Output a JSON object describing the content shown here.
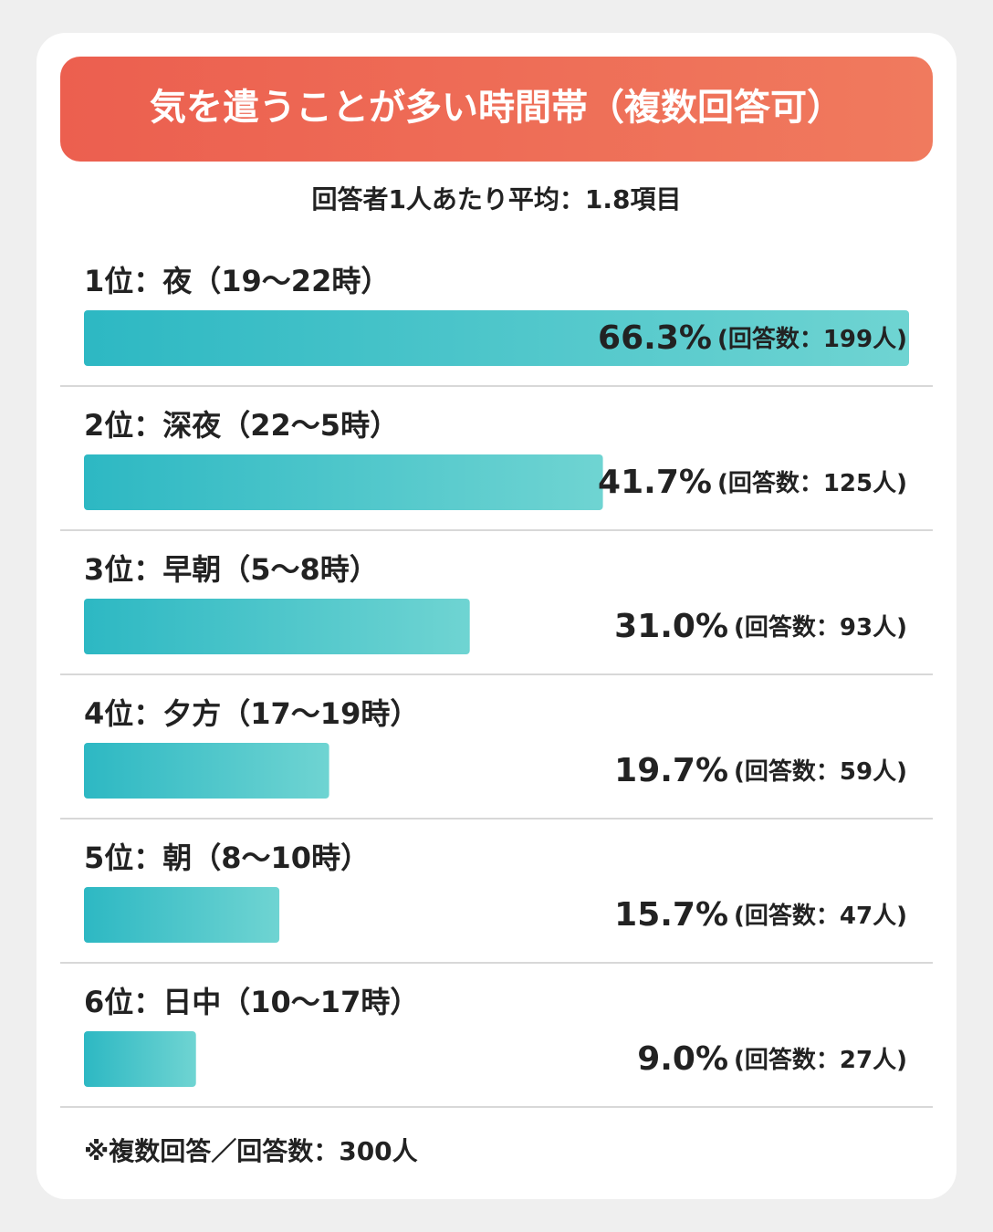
{
  "chart_data": {
    "type": "bar",
    "orientation": "horizontal",
    "title": "気を遣うことが多い時間帯（複数回答可）",
    "subtitle": "回答者1人あたり平均：1.8項目",
    "categories": [
      "1位：夜（19〜22時）",
      "2位：深夜（22〜5時）",
      "3位：早朝（5〜8時）",
      "4位：夕方（17〜19時）",
      "5位：朝（8〜10時）",
      "6位：日中（10〜17時）"
    ],
    "values": [
      66.3,
      41.7,
      31.0,
      19.7,
      15.7,
      9.0
    ],
    "value_labels": [
      "66.3%",
      "41.7%",
      "31.0%",
      "19.7%",
      "15.7%",
      "9.0%"
    ],
    "count_labels": [
      "(回答数：199人)",
      "(回答数：125人)",
      "(回答数：93人)",
      "(回答数：59人)",
      "(回答数：47人)",
      "(回答数：27人)"
    ],
    "color": "#2db8c3",
    "xlim": [
      0,
      66.3
    ],
    "footnote": "※複数回答／回答数：300人"
  }
}
